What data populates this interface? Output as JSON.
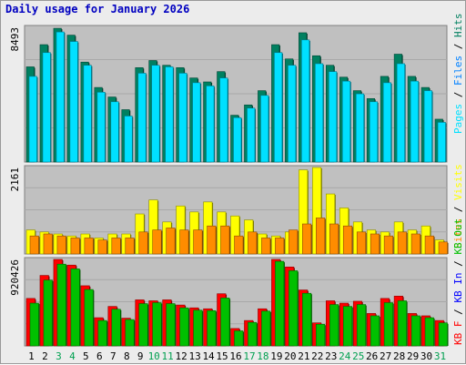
{
  "chart_data": [
    {
      "type": "bar",
      "title": "Daily usage for January 2026",
      "days": [
        "1",
        "2",
        "3",
        "4",
        "5",
        "6",
        "7",
        "8",
        "9",
        "10",
        "11",
        "12",
        "13",
        "14",
        "15",
        "16",
        "17",
        "18",
        "19",
        "20",
        "21",
        "22",
        "23",
        "24",
        "25",
        "26",
        "27",
        "28",
        "29",
        "30",
        "31"
      ],
      "weekend_days": [
        "3",
        "4",
        "10",
        "11",
        "17",
        "18",
        "24",
        "25",
        "31"
      ],
      "weekday_label_color": "#000000",
      "weekend_label_color": "#00a050",
      "panels": [
        {
          "id": "hits-files-pages",
          "ymax_label": "8493",
          "ymax": 8493,
          "series": [
            {
              "name": "Hits",
              "color": "#008060",
              "values": [
                6000,
                7400,
                8430,
                8000,
                6300,
                4700,
                4100,
                3300,
                5950,
                6400,
                6100,
                5950,
                5300,
                5050,
                5700,
                2950,
                3600,
                4500,
                7400,
                6500,
                8150,
                6700,
                6100,
                5350,
                4500,
                4000,
                5400,
                6800,
                5400,
                4700,
                2700
              ]
            },
            {
              "name": "Files",
              "color": "#0080ff",
              "values": [
                5400,
                6900,
                8200,
                7600,
                6100,
                4400,
                3800,
                2900,
                5600,
                6100,
                6000,
                5600,
                5000,
                4800,
                5300,
                2800,
                3400,
                4200,
                6900,
                6100,
                7700,
                6200,
                5700,
                5100,
                4300,
                3800,
                5000,
                6200,
                5100,
                4500,
                2500
              ]
            },
            {
              "name": "Pages",
              "color": "#00e0ff",
              "values": [
                5400,
                6900,
                8200,
                7600,
                6100,
                4400,
                3800,
                2900,
                5600,
                6100,
                6000,
                5600,
                5000,
                4800,
                5300,
                2800,
                3400,
                4200,
                6900,
                6100,
                7700,
                6200,
                5700,
                5100,
                4300,
                3800,
                5000,
                6200,
                5100,
                4500,
                2500
              ]
            }
          ]
        },
        {
          "id": "visits-sites",
          "ymax_label": "2161",
          "ymax": 2161,
          "series": [
            {
              "name": "Visits",
              "color": "#ffff00",
              "values": [
                600,
                550,
                500,
                450,
                500,
                400,
                500,
                500,
                1000,
                1350,
                800,
                1200,
                1050,
                1300,
                1050,
                950,
                850,
                500,
                450,
                550,
                2100,
                2161,
                1500,
                1150,
                800,
                600,
                550,
                800,
                600,
                700,
                350
              ]
            },
            {
              "name": "Sites",
              "color": "#ff8c00",
              "values": [
                450,
                500,
                450,
                400,
                400,
                350,
                400,
                400,
                550,
                600,
                650,
                600,
                600,
                700,
                700,
                450,
                550,
                400,
                400,
                600,
                750,
                900,
                750,
                700,
                550,
                500,
                450,
                550,
                500,
                450,
                300
              ]
            }
          ]
        },
        {
          "id": "kbin-kbout-kbf",
          "ymax_label": "920426",
          "ymax": 920426,
          "series": [
            {
              "name": "KB F",
              "color": "#ff0000",
              "values": [
                505000,
                750000,
                920426,
                860000,
                640000,
                300000,
                420000,
                295000,
                490000,
                480000,
                490000,
                435000,
                405000,
                395000,
                555000,
                185000,
                270000,
                395000,
                920426,
                840000,
                595000,
                245000,
                480000,
                455000,
                475000,
                345000,
                505000,
                530000,
                345000,
                320000,
                270000
              ]
            },
            {
              "name": "KB Out",
              "color": "#00c000",
              "values": [
                455000,
                700000,
                870000,
                820000,
                600000,
                270000,
                390000,
                280000,
                450000,
                460000,
                450000,
                405000,
                380000,
                375000,
                510000,
                160000,
                250000,
                370000,
                900000,
                800000,
                560000,
                230000,
                440000,
                420000,
                440000,
                320000,
                460000,
                480000,
                320000,
                300000,
                245000
              ]
            },
            {
              "name": "KB In",
              "color": "#0000ff",
              "values": []
            }
          ]
        }
      ],
      "legend": {
        "panel1": [
          {
            "text": "Pages",
            "color": "#00e0ff"
          },
          {
            "text": "Files",
            "color": "#0080ff"
          },
          {
            "text": "Hits",
            "color": "#008060"
          }
        ],
        "panel2": [
          {
            "text": "Sites",
            "color": "#ff8c00"
          },
          {
            "text": "Visits",
            "color": "#ffff00"
          }
        ],
        "panel3": [
          {
            "text": "KB F",
            "color": "#ff0000"
          },
          {
            "text": "KB In",
            "color": "#0000ff"
          },
          {
            "text": "KB Out",
            "color": "#00c000"
          }
        ]
      }
    }
  ]
}
